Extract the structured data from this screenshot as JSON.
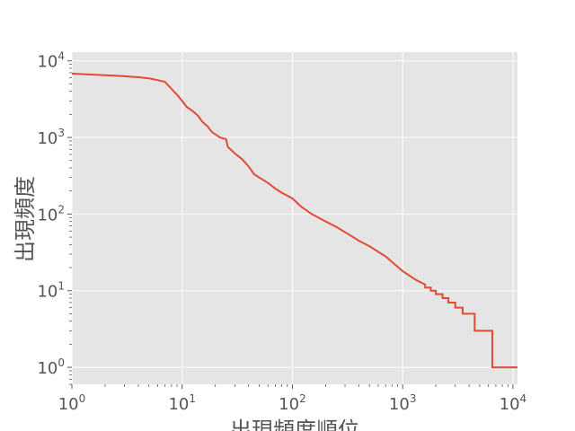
{
  "chart_data": {
    "type": "line",
    "title": "",
    "xlabel": "出現頻度順位",
    "ylabel": "出現頻度",
    "xscale": "log",
    "yscale": "log",
    "xlim": [
      1,
      11000
    ],
    "ylim": [
      0.6,
      13000
    ],
    "grid": true,
    "x_ticks": [
      {
        "base": "10",
        "exp": "0"
      },
      {
        "base": "10",
        "exp": "1"
      },
      {
        "base": "10",
        "exp": "2"
      },
      {
        "base": "10",
        "exp": "3"
      },
      {
        "base": "10",
        "exp": "4"
      }
    ],
    "y_ticks": [
      {
        "base": "10",
        "exp": "0"
      },
      {
        "base": "10",
        "exp": "1"
      },
      {
        "base": "10",
        "exp": "2"
      },
      {
        "base": "10",
        "exp": "3"
      },
      {
        "base": "10",
        "exp": "4"
      }
    ],
    "colors": {
      "plot_background": "#e5e5e5",
      "grid": "#ffffff",
      "line": "#e24a33",
      "text": "#555555"
    },
    "series": [
      {
        "x": [
          1,
          2,
          3,
          4,
          5,
          6,
          7,
          8,
          9,
          10,
          11,
          12,
          13,
          14,
          15,
          16,
          17,
          18,
          19,
          20,
          22,
          25,
          26,
          28,
          30,
          35,
          40,
          45,
          50,
          60,
          70,
          80,
          100,
          120,
          150,
          200,
          250,
          300,
          400,
          500,
          700,
          1000,
          1300,
          1600,
          1600,
          1800,
          1800,
          2000,
          2000,
          2300,
          2300,
          2600,
          2600,
          3000,
          3000,
          3500,
          3500,
          4500,
          4500,
          6500,
          6500,
          11000
        ],
        "y": [
          6800,
          6500,
          6300,
          6100,
          5900,
          5600,
          5300,
          4300,
          3600,
          3000,
          2500,
          2300,
          2100,
          1900,
          1650,
          1500,
          1400,
          1250,
          1150,
          1100,
          1000,
          950,
          750,
          680,
          620,
          520,
          420,
          330,
          300,
          255,
          215,
          190,
          160,
          125,
          100,
          80,
          68,
          58,
          45,
          38,
          28,
          18,
          14,
          12,
          11,
          11,
          10,
          10,
          9,
          9,
          8,
          8,
          7,
          7,
          6,
          6,
          5,
          5,
          3,
          3,
          1,
          1
        ]
      }
    ]
  }
}
